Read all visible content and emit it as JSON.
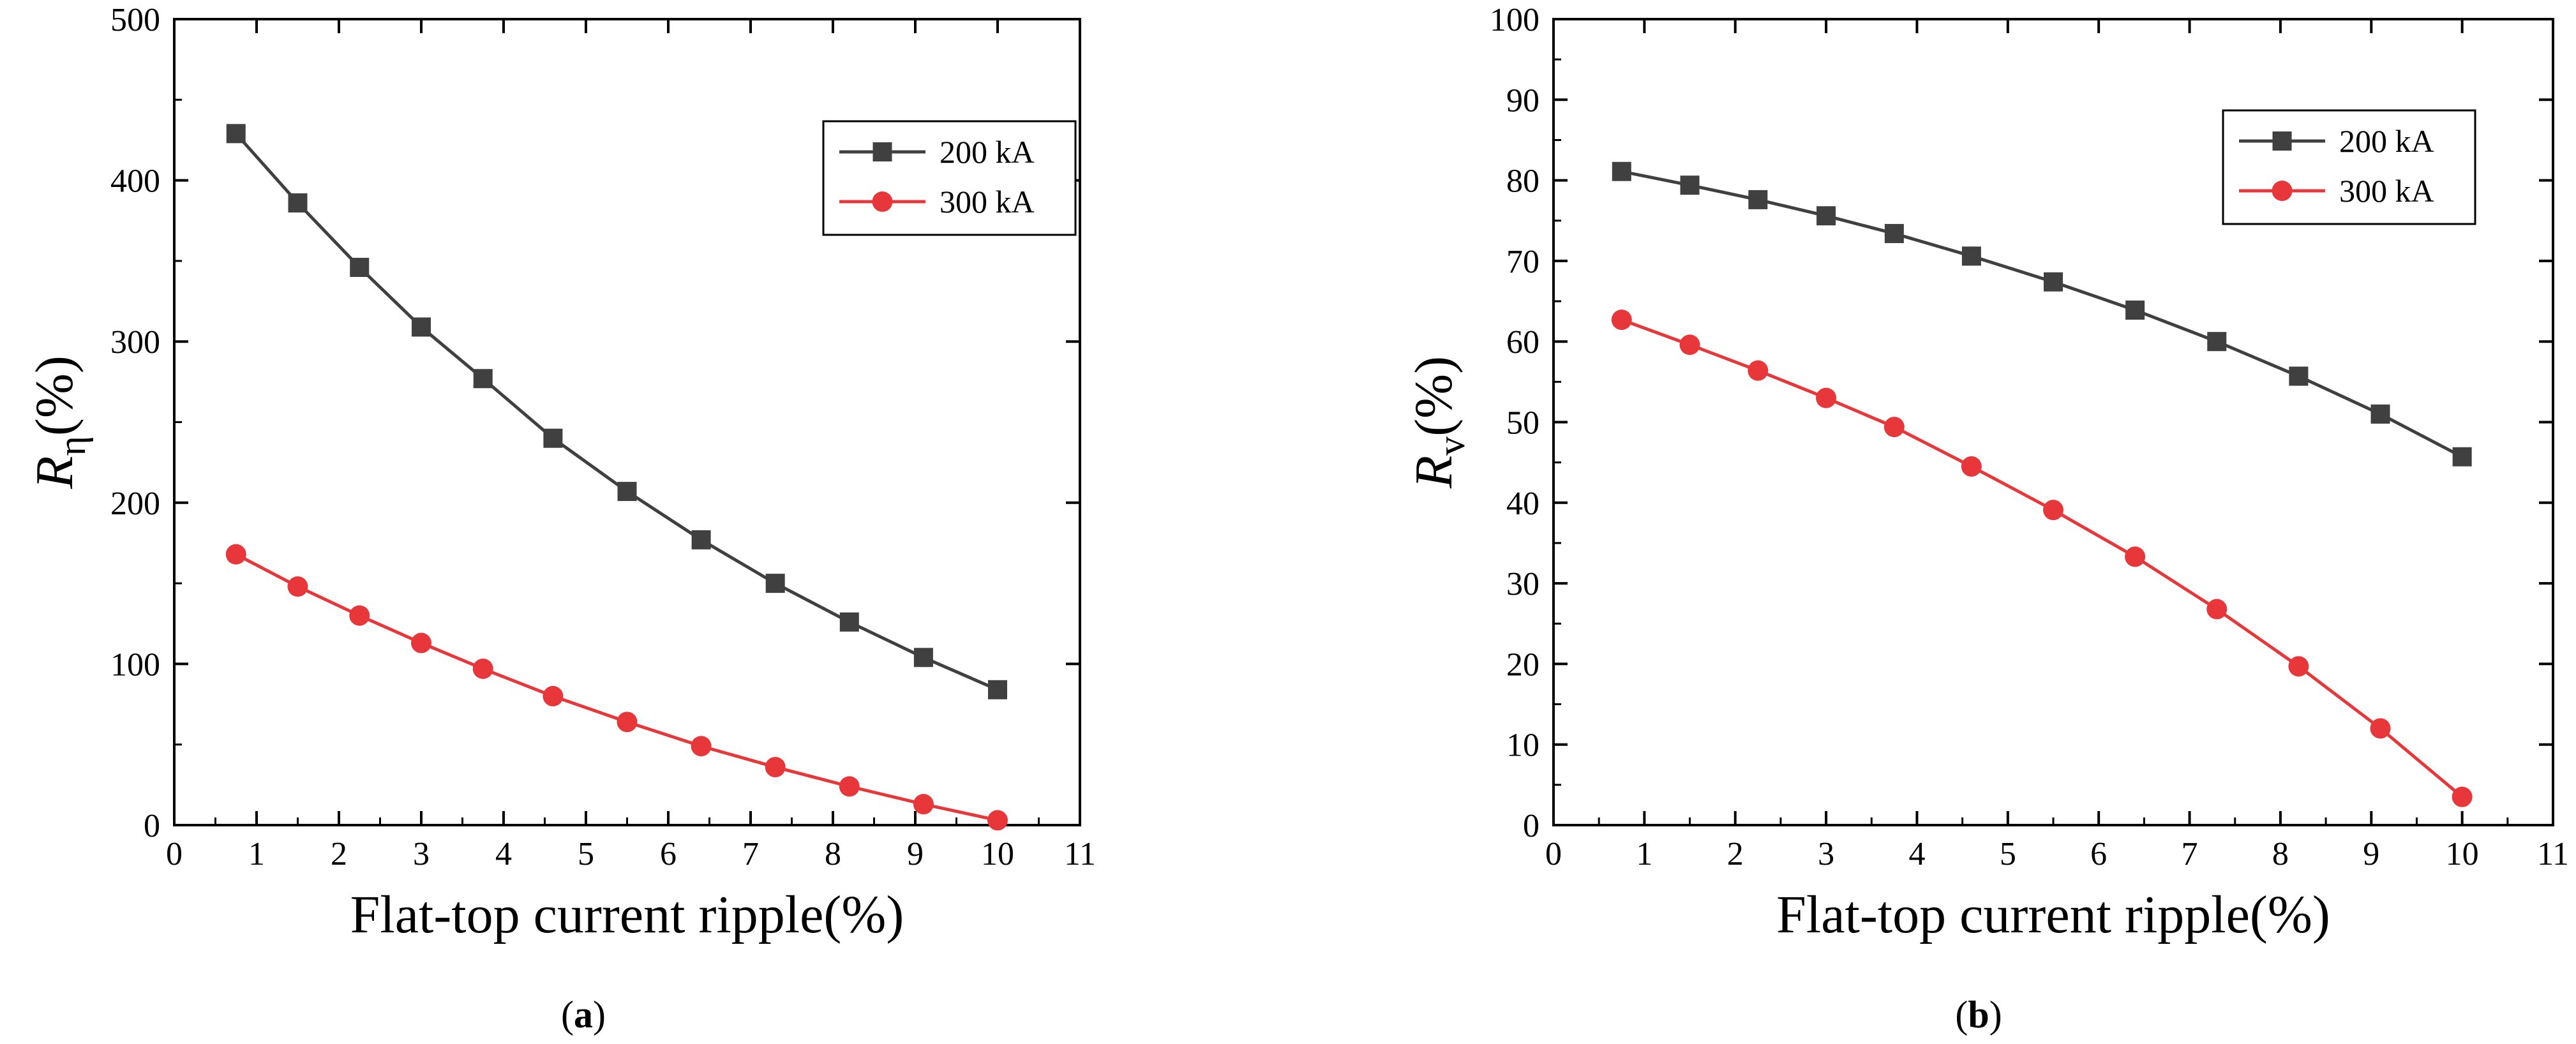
{
  "chart_data": [
    {
      "type": "line",
      "panel_label": "a",
      "xlabel": "Flat-top current ripple(%)",
      "ylabel_main": "R",
      "ylabel_sub": "η",
      "ylabel_unit": "(%)",
      "xlim": [
        0,
        11
      ],
      "ylim": [
        0,
        500
      ],
      "xticks": [
        0,
        1,
        2,
        3,
        4,
        5,
        6,
        7,
        8,
        9,
        10,
        11
      ],
      "yticks": [
        0,
        100,
        200,
        300,
        400,
        500
      ],
      "grid": false,
      "legend_position": "top-right",
      "x": [
        0.75,
        1.5,
        2.25,
        3,
        3.75,
        4.6,
        5.5,
        6.4,
        7.3,
        8.2,
        9.1,
        10
      ],
      "series": [
        {
          "name": "200 kA",
          "color": "#404040",
          "marker": "square",
          "values": [
            429,
            386,
            346,
            309,
            277,
            240,
            207,
            177,
            150,
            126,
            104,
            84
          ]
        },
        {
          "name": "300 kA",
          "color": "#e8373a",
          "marker": "circle",
          "values": [
            168,
            148,
            130,
            113,
            97,
            80,
            64,
            49,
            36,
            24,
            13,
            3
          ]
        }
      ]
    },
    {
      "type": "line",
      "panel_label": "b",
      "xlabel": "Flat-top current ripple(%)",
      "ylabel_main": "R",
      "ylabel_sub": "v",
      "ylabel_unit": "(%)",
      "xlim": [
        0,
        11
      ],
      "ylim": [
        0,
        100
      ],
      "xticks": [
        0,
        1,
        2,
        3,
        4,
        5,
        6,
        7,
        8,
        9,
        10,
        11
      ],
      "yticks": [
        0,
        10,
        20,
        30,
        40,
        50,
        60,
        70,
        80,
        90,
        100
      ],
      "grid": false,
      "legend_position": "top-right",
      "x": [
        0.75,
        1.5,
        2.25,
        3,
        3.75,
        4.6,
        5.5,
        6.4,
        7.3,
        8.2,
        9.1,
        10
      ],
      "series": [
        {
          "name": "200 kA",
          "color": "#404040",
          "marker": "square",
          "values": [
            81.1,
            79.4,
            77.6,
            75.6,
            73.4,
            70.6,
            67.4,
            63.9,
            60.0,
            55.7,
            51.0,
            45.7
          ]
        },
        {
          "name": "300 kA",
          "color": "#e8373a",
          "marker": "circle",
          "values": [
            62.7,
            59.6,
            56.4,
            53.0,
            49.4,
            44.5,
            39.1,
            33.3,
            26.8,
            19.7,
            12.0,
            3.5
          ]
        }
      ]
    }
  ]
}
